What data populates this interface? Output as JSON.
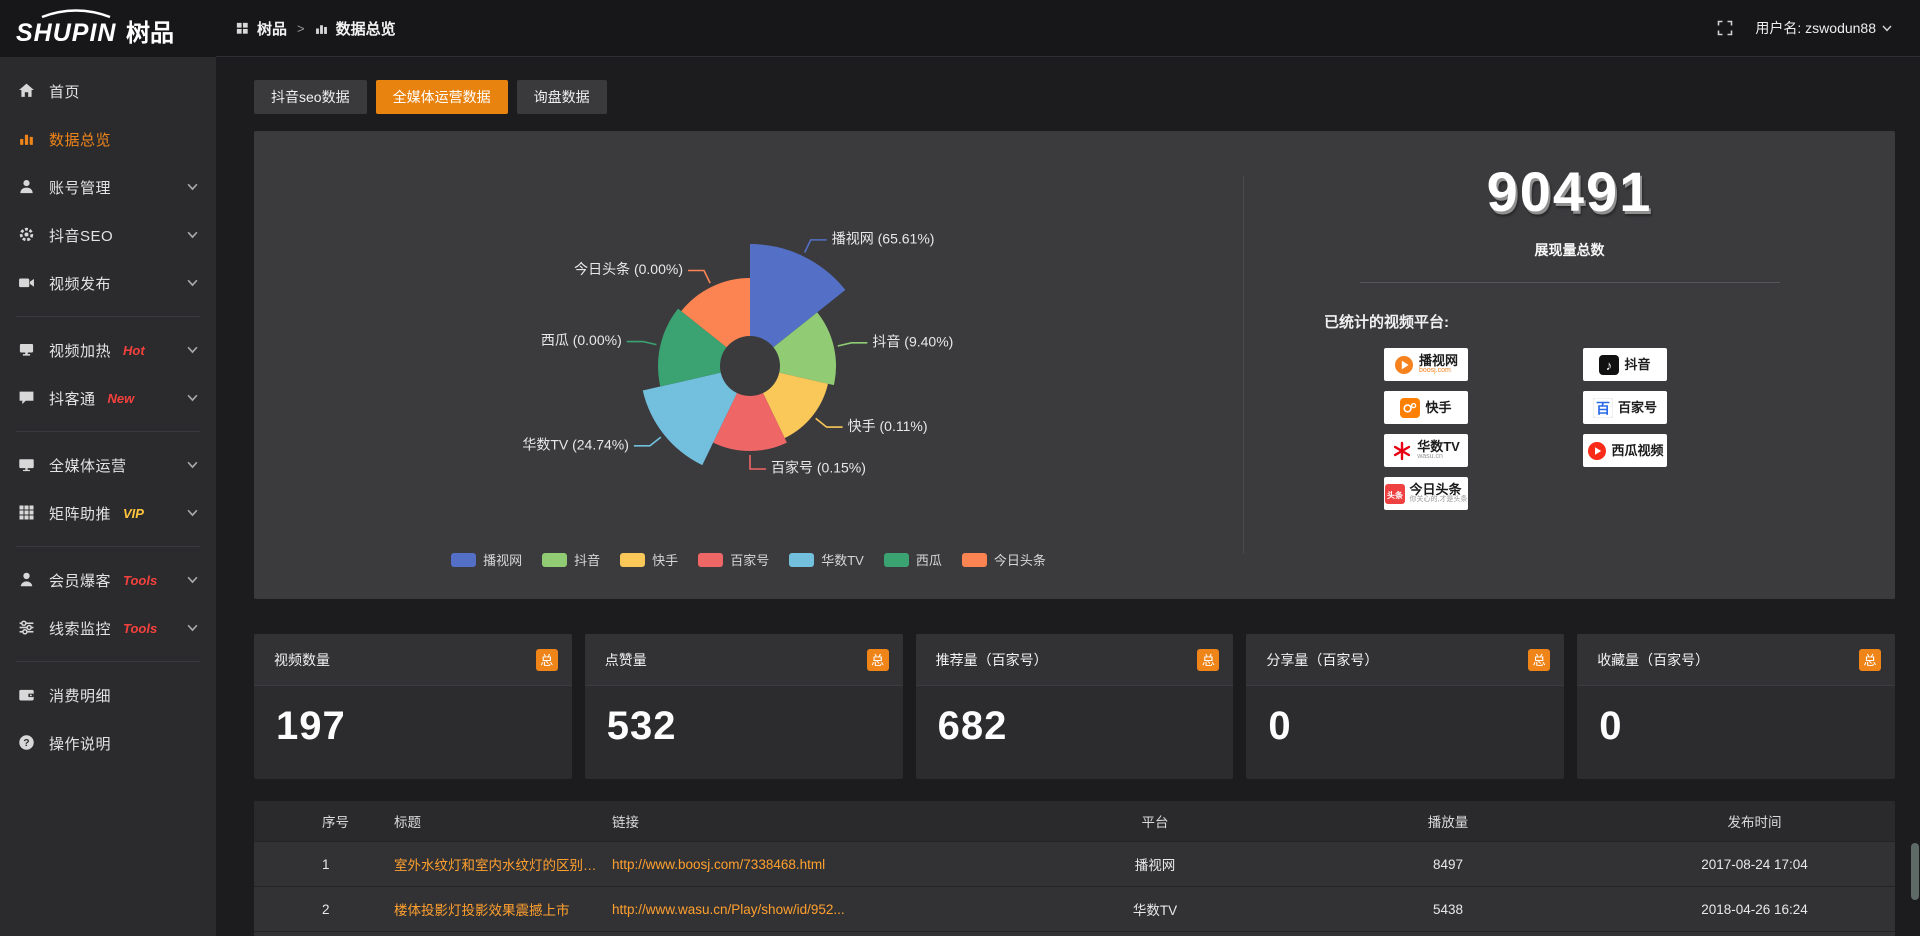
{
  "topbar": {
    "logo_text": "SHUPIN",
    "logo_cn": "树品",
    "breadcrumb": [
      {
        "icon": "app",
        "label": "树品"
      },
      {
        "icon": "chart-sm",
        "label": "数据总览"
      }
    ],
    "separator": ">",
    "username": "用户名: zswodun88"
  },
  "sidebar": {
    "items": [
      {
        "key": "home",
        "icon": "home",
        "label": "首页"
      },
      {
        "key": "data-overview",
        "icon": "chart",
        "label": "数据总览",
        "active": true
      },
      {
        "key": "account-manage",
        "icon": "user",
        "label": "账号管理",
        "chevron": true
      },
      {
        "key": "douyin-seo",
        "icon": "gear",
        "label": "抖音SEO",
        "chevron": true
      },
      {
        "key": "video-publish",
        "icon": "video",
        "label": "视频发布",
        "chevron": true,
        "divider_after": true
      },
      {
        "key": "video-heat",
        "icon": "screen",
        "label": "视频加热",
        "badge": "Hot",
        "badge_color": "#f5413d",
        "chevron": true
      },
      {
        "key": "douketong",
        "icon": "chat",
        "label": "抖客通",
        "badge": "New",
        "badge_color": "#f5413d",
        "chevron": true,
        "divider_after": true
      },
      {
        "key": "omni-media",
        "icon": "monitor",
        "label": "全媒体运营",
        "chevron": true
      },
      {
        "key": "matrix-push",
        "icon": "grid",
        "label": "矩阵助推",
        "badge": "VIP",
        "badge_color": "#ffc53d",
        "chevron": true,
        "divider_after": true
      },
      {
        "key": "member-baoke",
        "icon": "person",
        "label": "会员爆客",
        "badge": "Tools",
        "badge_color": "#f5413d",
        "chevron": true
      },
      {
        "key": "clue-monitor",
        "icon": "sliders",
        "label": "线索监控",
        "badge": "Tools",
        "badge_color": "#f5413d",
        "chevron": true,
        "divider_after": true
      },
      {
        "key": "consume-detail",
        "icon": "wallet",
        "label": "消费明细"
      },
      {
        "key": "operation-guide",
        "icon": "question",
        "label": "操作说明"
      }
    ]
  },
  "tabs": [
    {
      "label": "抖音seo数据"
    },
    {
      "label": "全媒体运营数据",
      "active": true
    },
    {
      "label": "询盘数据"
    }
  ],
  "chart_data": {
    "type": "pie",
    "style": "nightingale-rose",
    "inner_radius": 30,
    "equal_angles": true,
    "legend_position": "bottom",
    "label_format": "{name} ({pct}%)",
    "series": [
      {
        "name": "播视网",
        "pct": 65.61,
        "color": "#5470c6",
        "radius": 122
      },
      {
        "name": "抖音",
        "pct": 9.4,
        "color": "#91cc75",
        "radius": 86
      },
      {
        "name": "快手",
        "pct": 0.11,
        "color": "#fac858",
        "radius": 80
      },
      {
        "name": "百家号",
        "pct": 0.15,
        "color": "#ee6666",
        "radius": 85
      },
      {
        "name": "华数TV",
        "pct": 24.74,
        "color": "#73c0de",
        "radius": 110
      },
      {
        "name": "西瓜",
        "pct": 0.0,
        "color": "#3ba272",
        "radius": 92
      },
      {
        "name": "今日头条",
        "pct": 0.0,
        "color": "#fc8452",
        "radius": 88
      }
    ]
  },
  "summary": {
    "total": "90491",
    "total_label": "展现量总数",
    "platforms_title": "已统计的视频平台:",
    "platforms": [
      {
        "name": "播视网",
        "sub": "boosj.com",
        "logo": "boosj"
      },
      {
        "name": "抖音",
        "logo": "douyin"
      },
      {
        "name": "快手",
        "logo": "kuaishou"
      },
      {
        "name": "百家号",
        "logo": "baijiahao"
      },
      {
        "name": "华数TV",
        "sub": "wasu.cn",
        "sub_gray": true,
        "logo": "wasu"
      },
      {
        "name": "西瓜视频",
        "logo": "xigua"
      },
      {
        "name": "今日头条",
        "sub": "你关心的,才是头条",
        "sub_gray": true,
        "logo": "toutiao"
      }
    ]
  },
  "stat_cards": [
    {
      "title": "视频数量",
      "badge": "总",
      "value": "197"
    },
    {
      "title": "点赞量",
      "badge": "总",
      "value": "532"
    },
    {
      "title": "推荐量（百家号）",
      "badge": "总",
      "value": "682"
    },
    {
      "title": "分享量（百家号）",
      "badge": "总",
      "value": "0"
    },
    {
      "title": "收藏量（百家号）",
      "badge": "总",
      "value": "0"
    }
  ],
  "table": {
    "columns": [
      "序号",
      "标题",
      "链接",
      "平台",
      "播放量",
      "发布时间"
    ],
    "rows": [
      {
        "num": "1",
        "title": "室外水纹灯和室内水纹灯的区别和简介",
        "link": "http://www.boosj.com/7338468.html",
        "platform": "播视网",
        "plays": "8497",
        "time": "2017-08-24 17:04"
      },
      {
        "num": "2",
        "title": "楼体投影灯投影效果震撼上市",
        "link": "http://www.wasu.cn/Play/show/id/952...",
        "platform": "华数TV",
        "plays": "5438",
        "time": "2018-04-26 16:24"
      }
    ]
  }
}
